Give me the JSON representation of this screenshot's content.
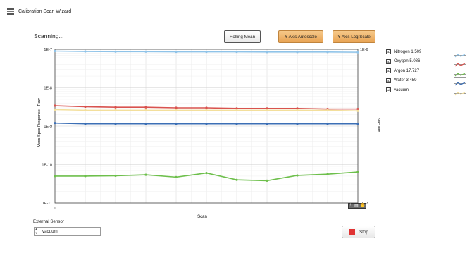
{
  "window": {
    "title": "Calibration Scan Wizard",
    "icon": "window-app-icon"
  },
  "status": {
    "text": "Scanning..."
  },
  "toolbar": {
    "rolling_mean": "Rolling Mean",
    "y_autoscale": "Y-Axis Autoscale",
    "y_log_scale": "Y-Axis Log Scale"
  },
  "chart_data": {
    "type": "line",
    "xlabel": "Scan",
    "ylabel": "Mass Spec Response - Raw",
    "y2label": "vacuum",
    "x": [
      0,
      1,
      2,
      3,
      4,
      5,
      6,
      7,
      8,
      9,
      10
    ],
    "xlim": [
      0,
      10
    ],
    "ylim": [
      "1E-11",
      "1E-7"
    ],
    "y_scale": "log",
    "y_ticks": [
      "1E-7",
      "1E-8",
      "1E-9",
      "1E-10",
      "1E-11"
    ],
    "y2_ticks": [
      "1E-6",
      "1E-7"
    ],
    "x_ticks": [
      "0",
      "10"
    ],
    "grid": true,
    "legend_position": "right",
    "series": [
      {
        "name": "Nitrogen 1.509",
        "color": "#8fc3e8",
        "values": [
          9e-08,
          8.8e-08,
          8.7e-08,
          8.7e-08,
          8.6e-08,
          8.6e-08,
          8.6e-08,
          8.5e-08,
          8.5e-08,
          8.5e-08,
          8.4e-08
        ]
      },
      {
        "name": "Oxygen 5.086",
        "color": "#d9534f",
        "values": [
          3.4e-09,
          3.2e-09,
          3.1e-09,
          3.1e-09,
          3e-09,
          3e-09,
          2.9e-09,
          2.9e-09,
          2.9e-09,
          2.8e-09,
          2.8e-09
        ]
      },
      {
        "name": "Argon 17.727",
        "color": "#6dbf4b",
        "values": [
          5e-11,
          5e-11,
          5.1e-11,
          5.4e-11,
          4.7e-11,
          6e-11,
          4e-11,
          3.8e-11,
          5.2e-11,
          5.6e-11,
          6.4e-11
        ]
      },
      {
        "name": "Water 3.459",
        "color": "#3c6fb5",
        "values": [
          1.2e-09,
          1.15e-09,
          1.15e-09,
          1.15e-09,
          1.15e-09,
          1.15e-09,
          1.15e-09,
          1.15e-09,
          1.15e-09,
          1.15e-09,
          1.15e-09
        ]
      },
      {
        "name": "vacuum",
        "color": "#f3df9c",
        "values": [
          2.7e-09,
          2.6e-09,
          2.6e-09,
          2.6e-09,
          2.6e-09,
          2.6e-09,
          2.6e-09,
          2.6e-09,
          2.6e-09,
          2.6e-09,
          2.5e-09
        ]
      }
    ]
  },
  "legend": {
    "items": [
      {
        "label": "Nitrogen 1.509",
        "checked": "☑",
        "color": "#8fc3e8"
      },
      {
        "label": "Oxygen 5.086",
        "checked": "☑",
        "color": "#d9534f"
      },
      {
        "label": "Argon 17.727",
        "checked": "☑",
        "color": "#6dbf4b"
      },
      {
        "label": "Water 3.459",
        "checked": "☑",
        "color": "#3c6fb5"
      },
      {
        "label": "vacuum",
        "checked": "☑",
        "color": "#f3df9c"
      }
    ]
  },
  "external_sensor": {
    "label": "External Sensor",
    "value": "vacuum"
  },
  "stop_button": {
    "label": "Stop"
  }
}
